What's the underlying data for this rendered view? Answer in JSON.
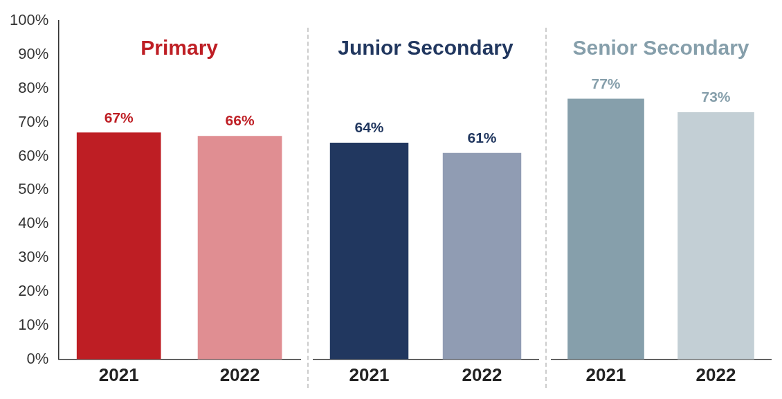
{
  "chart_data": [
    {
      "type": "bar",
      "title": "Primary",
      "categories": [
        "2021",
        "2022"
      ],
      "values": [
        67,
        66
      ],
      "colors": [
        "#be1e24",
        "#e08e92"
      ],
      "value_labels": [
        "67%",
        "66%"
      ],
      "ylim": [
        0,
        100
      ],
      "yticks": [
        {
          "value": 0,
          "label": "0%"
        },
        {
          "value": 10,
          "label": "10%"
        },
        {
          "value": 20,
          "label": "20%"
        },
        {
          "value": 30,
          "label": "30%"
        },
        {
          "value": 40,
          "label": "40%"
        },
        {
          "value": 50,
          "label": "50%"
        },
        {
          "value": 60,
          "label": "60%"
        },
        {
          "value": 70,
          "label": "70%"
        },
        {
          "value": 80,
          "label": "80%"
        },
        {
          "value": 90,
          "label": "90%"
        },
        {
          "value": 100,
          "label": "100%"
        }
      ],
      "grid": false
    },
    {
      "type": "bar",
      "title": "Junior Secondary",
      "categories": [
        "2021",
        "2022"
      ],
      "values": [
        64,
        61
      ],
      "colors": [
        "#21375f",
        "#909cb3"
      ],
      "value_labels": [
        "64%",
        "61%"
      ],
      "ylim": [
        0,
        100
      ],
      "grid": false,
      "tick_labels": "x"
    },
    {
      "type": "bar",
      "title": "Senior Secondary",
      "categories": [
        "2021",
        "2022"
      ],
      "values": [
        77,
        73
      ],
      "colors": [
        "#869fab",
        "#c3cfd5"
      ],
      "value_labels": [
        "77%",
        "73%"
      ],
      "ylim": [
        0,
        100
      ],
      "grid": false,
      "tick_labels": "x"
    }
  ]
}
